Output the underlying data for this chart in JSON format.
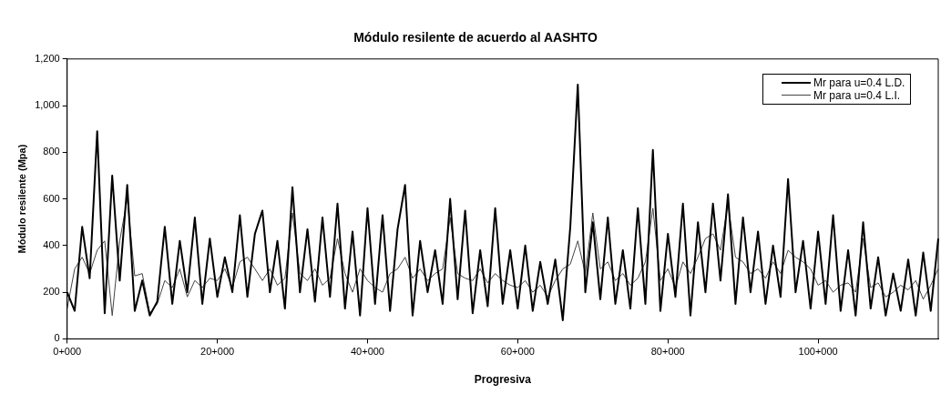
{
  "chart_data": {
    "type": "line",
    "title": "Módulo resilente de acuerdo al AASHTO",
    "xlabel": "Progresiva",
    "ylabel": "Módulo resilente (Mpa)",
    "categories": [
      "0+000",
      null,
      null,
      null,
      null,
      null,
      null,
      null,
      null,
      null,
      null,
      null,
      null,
      null,
      null,
      null,
      null,
      null,
      null,
      null,
      "20+000",
      null,
      null,
      null,
      null,
      null,
      null,
      null,
      null,
      null,
      null,
      null,
      null,
      null,
      null,
      null,
      null,
      null,
      null,
      null,
      "40+000",
      null,
      null,
      null,
      null,
      null,
      null,
      null,
      null,
      null,
      null,
      null,
      null,
      null,
      null,
      null,
      null,
      null,
      null,
      null,
      "60+000",
      null,
      null,
      null,
      null,
      null,
      null,
      null,
      null,
      null,
      null,
      null,
      null,
      null,
      null,
      null,
      null,
      null,
      null,
      null,
      "80+000",
      null,
      null,
      null,
      null,
      null,
      null,
      null,
      null,
      null,
      null,
      null,
      null,
      null,
      null,
      null,
      null,
      null,
      null,
      null,
      "100+000",
      null,
      null,
      null,
      null,
      null,
      null,
      null,
      null,
      null,
      null,
      null,
      null,
      null,
      null,
      null,
      null
    ],
    "series": [
      {
        "name": "Mr para u=0.4 L.D.",
        "color": "#000000",
        "values": [
          200,
          120,
          480,
          260,
          890,
          110,
          700,
          250,
          660,
          120,
          250,
          100,
          160,
          480,
          150,
          420,
          200,
          520,
          150,
          430,
          180,
          350,
          200,
          530,
          180,
          450,
          550,
          200,
          420,
          130,
          650,
          200,
          470,
          160,
          520,
          180,
          580,
          130,
          460,
          100,
          560,
          150,
          530,
          120,
          470,
          660,
          100,
          420,
          200,
          380,
          150,
          600,
          170,
          550,
          110,
          380,
          140,
          560,
          150,
          380,
          130,
          400,
          120,
          330,
          150,
          340,
          80,
          480,
          1090,
          200,
          500,
          170,
          520,
          150,
          380,
          130,
          560,
          150,
          810,
          120,
          450,
          180,
          580,
          100,
          500,
          200,
          580,
          250,
          620,
          150,
          520,
          200,
          460,
          150,
          400,
          180,
          685,
          200,
          420,
          130,
          460,
          150,
          530,
          120,
          380,
          100,
          500,
          130,
          350,
          100,
          280,
          120,
          340,
          100,
          370,
          120,
          430
        ]
      },
      {
        "name": "Mr para u=0.4 L.I.",
        "color": "#444444",
        "values": [
          130,
          300,
          350,
          280,
          380,
          420,
          100,
          420,
          600,
          270,
          280,
          110,
          150,
          250,
          220,
          300,
          180,
          250,
          220,
          260,
          250,
          300,
          220,
          330,
          350,
          300,
          250,
          300,
          230,
          260,
          540,
          280,
          250,
          300,
          230,
          260,
          430,
          280,
          200,
          300,
          250,
          220,
          200,
          280,
          300,
          350,
          260,
          300,
          250,
          280,
          300,
          520,
          280,
          260,
          250,
          300,
          240,
          280,
          250,
          230,
          220,
          250,
          200,
          230,
          180,
          250,
          300,
          320,
          420,
          280,
          540,
          300,
          330,
          250,
          280,
          230,
          260,
          330,
          560,
          250,
          300,
          220,
          330,
          280,
          350,
          430,
          450,
          380,
          580,
          350,
          330,
          280,
          300,
          260,
          330,
          280,
          380,
          350,
          330,
          300,
          230,
          250,
          200,
          230,
          240,
          200,
          430,
          220,
          240,
          180,
          200,
          230,
          210,
          250,
          170,
          230,
          300
        ]
      }
    ],
    "ylim": [
      0,
      1200
    ],
    "yticks": [
      0,
      200,
      400,
      600,
      800,
      {
        "value": 1000,
        "label": "1,000"
      },
      {
        "value": 1200,
        "label": "1,200"
      }
    ],
    "grid": false,
    "legend": "top right",
    "marker": "none",
    "line_style": "solid"
  }
}
